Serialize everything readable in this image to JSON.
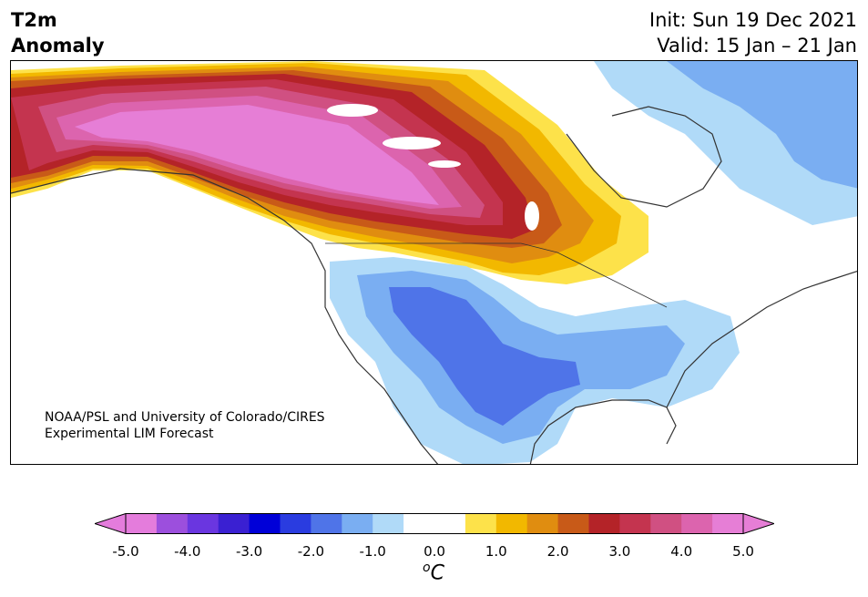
{
  "header": {
    "variable": "T2m",
    "product": "Anomaly",
    "init": "Init: Sun 19 Dec 2021",
    "valid": "Valid: 15 Jan – 21 Jan"
  },
  "credit": {
    "line1": "NOAA/PSL and University of Colorado/CIRES",
    "line2": "Experimental LIM Forecast"
  },
  "colorbar": {
    "unit": "C",
    "unit_prefix": "o",
    "ticks": [
      "-5.0",
      "-4.0",
      "-3.0",
      "-2.0",
      "-1.0",
      "0.0",
      "1.0",
      "2.0",
      "3.0",
      "4.0",
      "5.0"
    ],
    "colors": [
      "#e47cdc",
      "#9c4fdd",
      "#6a36e0",
      "#3a20d2",
      "#0000d8",
      "#2a3ce0",
      "#4f74e8",
      "#7aaef2",
      "#b0daf8",
      "#ffffff",
      "#ffffff",
      "#fde24a",
      "#f2b800",
      "#e08d10",
      "#c85a18",
      "#b42328",
      "#c4344f",
      "#d05082",
      "#dc64ae",
      "#e67ed6"
    ],
    "under_color": "#e47cdc",
    "over_color": "#e67ed6"
  },
  "map": {
    "region": "North America",
    "ocean_color": "#ffffff",
    "coast_color": "#333333"
  }
}
